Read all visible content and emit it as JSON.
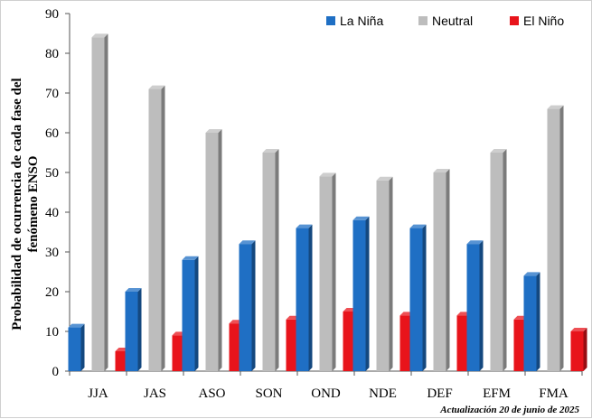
{
  "chart_data": {
    "type": "bar",
    "ylabel": [
      "Probabilidad de ocurrencia  de cada fase del",
      "fenómeno ENSO"
    ],
    "xlabel": "",
    "ylim": [
      0,
      90
    ],
    "yticks": [
      0,
      10,
      20,
      30,
      40,
      50,
      60,
      70,
      80,
      90
    ],
    "categories": [
      "JJA",
      "JAS",
      "ASO",
      "SON",
      "OND",
      "NDE",
      "DEF",
      "EFM",
      "FMA"
    ],
    "series": [
      {
        "name": "La Niña",
        "color": "#1f6fc4",
        "values": [
          11,
          20,
          28,
          32,
          36,
          38,
          36,
          32,
          24
        ]
      },
      {
        "name": "Neutral",
        "color": "#bdbdbd",
        "values": [
          84,
          71,
          60,
          55,
          49,
          48,
          50,
          55,
          66
        ]
      },
      {
        "name": "El Niño",
        "color": "#e8141b",
        "values": [
          5,
          9,
          12,
          13,
          15,
          14,
          14,
          13,
          10
        ]
      }
    ],
    "legend_position": "top-right",
    "grid": false
  },
  "footnote": "Actualización 20 de junio de 2025"
}
